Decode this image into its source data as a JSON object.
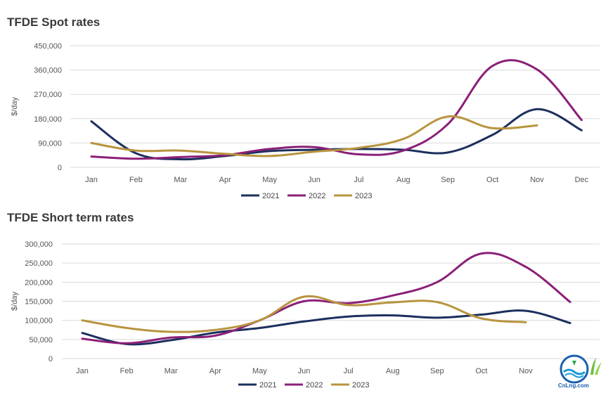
{
  "logo": {
    "text": "CnLng.com",
    "name": "cnlng-logo"
  },
  "chart_data": [
    {
      "type": "line",
      "title": "TFDE Spot rates",
      "xlabel": "",
      "ylabel": "$/day",
      "categories": [
        "Jan",
        "Feb",
        "Mar",
        "Apr",
        "May",
        "Jun",
        "Jul",
        "Aug",
        "Sep",
        "Oct",
        "Nov",
        "Dec"
      ],
      "ylim": [
        0,
        450000
      ],
      "yticks": [
        0,
        90000,
        180000,
        270000,
        360000,
        450000
      ],
      "ytick_labels": [
        "0",
        "90,000",
        "180,000",
        "270,000",
        "360,000",
        "450,000"
      ],
      "grid": true,
      "legend": "bottom",
      "series": [
        {
          "name": "2021",
          "color": "#1c2f5e",
          "values": [
            170000,
            52000,
            30000,
            42000,
            60000,
            65000,
            68000,
            65000,
            55000,
            120000,
            215000,
            137000
          ]
        },
        {
          "name": "2022",
          "color": "#8b1f78",
          "values": [
            40000,
            32000,
            38000,
            45000,
            68000,
            75000,
            48000,
            62000,
            160000,
            375000,
            362000,
            175000
          ]
        },
        {
          "name": "2023",
          "color": "#b8943f",
          "values": [
            90000,
            62000,
            62000,
            50000,
            42000,
            58000,
            72000,
            105000,
            188000,
            145000,
            155000,
            null
          ]
        }
      ]
    },
    {
      "type": "line",
      "title": "TFDE Short term rates",
      "xlabel": "",
      "ylabel": "$/day",
      "categories": [
        "Jan",
        "Feb",
        "Mar",
        "Apr",
        "May",
        "Jun",
        "Jul",
        "Aug",
        "Sep",
        "Oct",
        "Nov",
        "Dec"
      ],
      "ylim": [
        0,
        300000
      ],
      "yticks": [
        0,
        50000,
        100000,
        150000,
        200000,
        250000,
        300000
      ],
      "ytick_labels": [
        "0",
        "50,000",
        "100,000",
        "150,000",
        "200,000",
        "250,000",
        "300,000"
      ],
      "grid": true,
      "legend": "bottom",
      "series": [
        {
          "name": "2021",
          "color": "#1c2f5e",
          "values": [
            67000,
            38000,
            48000,
            68000,
            80000,
            97000,
            110000,
            113000,
            107000,
            115000,
            125000,
            93000
          ]
        },
        {
          "name": "2022",
          "color": "#8b1f78",
          "values": [
            52000,
            40000,
            55000,
            60000,
            100000,
            150000,
            145000,
            165000,
            200000,
            275000,
            240000,
            148000
          ]
        },
        {
          "name": "2023",
          "color": "#b8943f",
          "values": [
            100000,
            80000,
            70000,
            75000,
            100000,
            162000,
            140000,
            147000,
            148000,
            105000,
            95000,
            null
          ]
        }
      ]
    }
  ]
}
